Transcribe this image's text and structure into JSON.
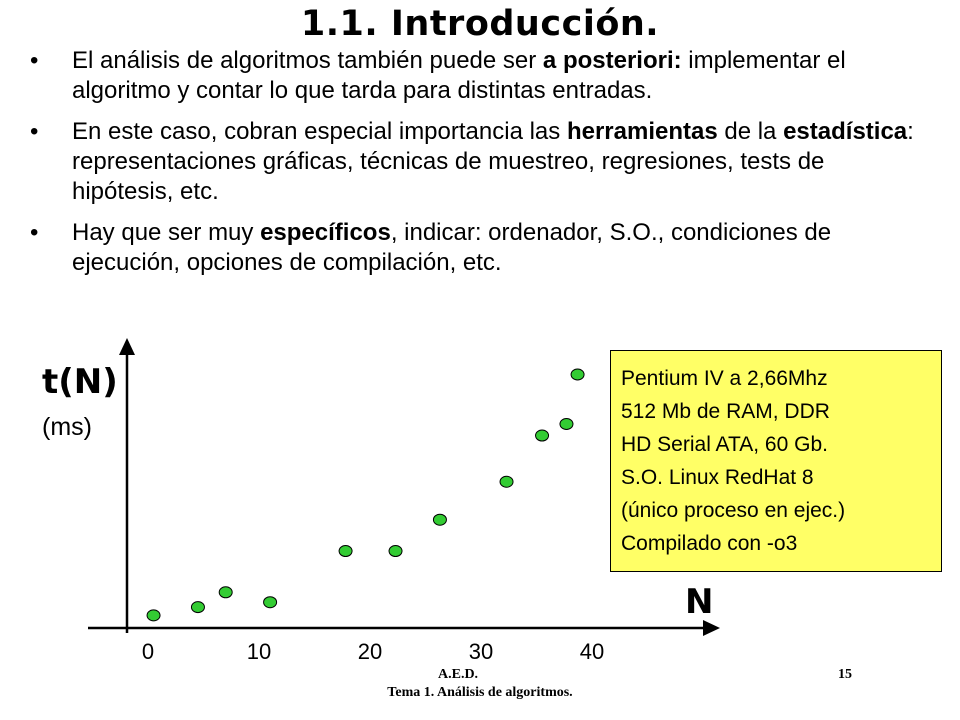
{
  "slide": {
    "title": "1.1. Introducción.",
    "bullet_char": "•",
    "bullets": [
      [
        {
          "t": "El análisis de algoritmos también puede ser ",
          "b": false
        },
        {
          "t": "a posteriori:",
          "b": true
        },
        {
          "t": " implementar el algoritmo y contar lo que tarda para distintas entradas.",
          "b": false
        }
      ],
      [
        {
          "t": "En este caso, cobran especial importancia las ",
          "b": false
        },
        {
          "t": "herramientas",
          "b": true
        },
        {
          "t": " de la ",
          "b": false
        },
        {
          "t": "estadística",
          "b": true
        },
        {
          "t": ": representaciones gráficas, técnicas de muestreo, regresiones, tests de hipótesis, etc.",
          "b": false
        }
      ],
      [
        {
          "t": "Hay que ser muy ",
          "b": false
        },
        {
          "t": "específicos",
          "b": true
        },
        {
          "t": ", indicar: ordenador, S.O., condiciones de ejecución, opciones de compilación, etc.",
          "b": false
        }
      ]
    ],
    "specs": [
      "Pentium IV a 2,66Mhz",
      "512 Mb de RAM, DDR",
      "HD Serial ATA, 60 Gb.",
      "S.O. Linux RedHat 8",
      "(único proceso en ejec.)",
      "Compilado con -o3"
    ],
    "specs_bg": "#ffff66",
    "footer": {
      "left": "A.E.D.",
      "right": "15",
      "center": "Tema 1. Análisis de algoritmos."
    }
  },
  "chart_data": {
    "type": "scatter",
    "ylabel": "t(N)",
    "yunit": "(ms)",
    "xlabel": "N",
    "x_ticks": [
      "0",
      "10",
      "20",
      "30",
      "40"
    ],
    "xlim": [
      0,
      40
    ],
    "point_color": "#33cc33",
    "points": [
      {
        "x": 0.5,
        "y": 0.4
      },
      {
        "x": 4.5,
        "y": 0.9
      },
      {
        "x": 7,
        "y": 1.8
      },
      {
        "x": 11,
        "y": 1.2
      },
      {
        "x": 17.8,
        "y": 4.3
      },
      {
        "x": 22.3,
        "y": 4.3
      },
      {
        "x": 26.3,
        "y": 6.2
      },
      {
        "x": 32.3,
        "y": 8.5
      },
      {
        "x": 35.5,
        "y": 11.3
      },
      {
        "x": 37.7,
        "y": 12.0
      },
      {
        "x": 38.7,
        "y": 15.0
      }
    ]
  }
}
